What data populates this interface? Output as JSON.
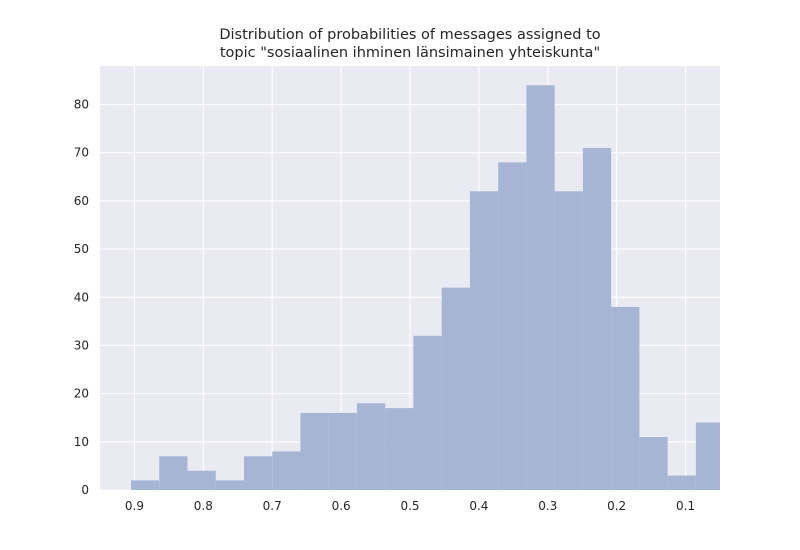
{
  "chart_data": {
    "type": "bar",
    "title_lines": [
      "Distribution of probabilities of messages assigned to",
      " topic \"sosiaalinen ihminen länsimainen yhteiskunta\""
    ],
    "xlabel": "",
    "ylabel": "",
    "x_axis_inverted": true,
    "xlim": [
      0.95,
      0.05
    ],
    "ylim": [
      0,
      88
    ],
    "x_ticks": [
      0.9,
      0.8,
      0.7,
      0.6,
      0.5,
      0.4,
      0.3,
      0.2,
      0.1
    ],
    "x_tick_labels": [
      "0.9",
      "0.8",
      "0.7",
      "0.6",
      "0.5",
      "0.4",
      "0.3",
      "0.2",
      "0.1"
    ],
    "y_ticks": [
      0,
      10,
      20,
      30,
      40,
      50,
      60,
      70,
      80
    ],
    "y_tick_labels": [
      "0",
      "10",
      "20",
      "30",
      "40",
      "50",
      "60",
      "70",
      "80"
    ],
    "bin_edges": [
      0.905,
      0.864,
      0.823,
      0.782,
      0.741,
      0.7,
      0.659,
      0.618,
      0.577,
      0.536,
      0.495,
      0.454,
      0.413,
      0.372,
      0.331,
      0.29,
      0.249,
      0.208,
      0.167,
      0.126,
      0.085,
      0.044
    ],
    "counts": [
      2,
      7,
      4,
      2,
      7,
      8,
      16,
      16,
      18,
      17,
      32,
      42,
      62,
      68,
      84,
      62,
      71,
      38,
      11,
      3,
      14
    ],
    "bar_color": "#a7b5d5",
    "background_color": "#eaeaf2",
    "grid": true,
    "grid_color": "#ffffff"
  }
}
